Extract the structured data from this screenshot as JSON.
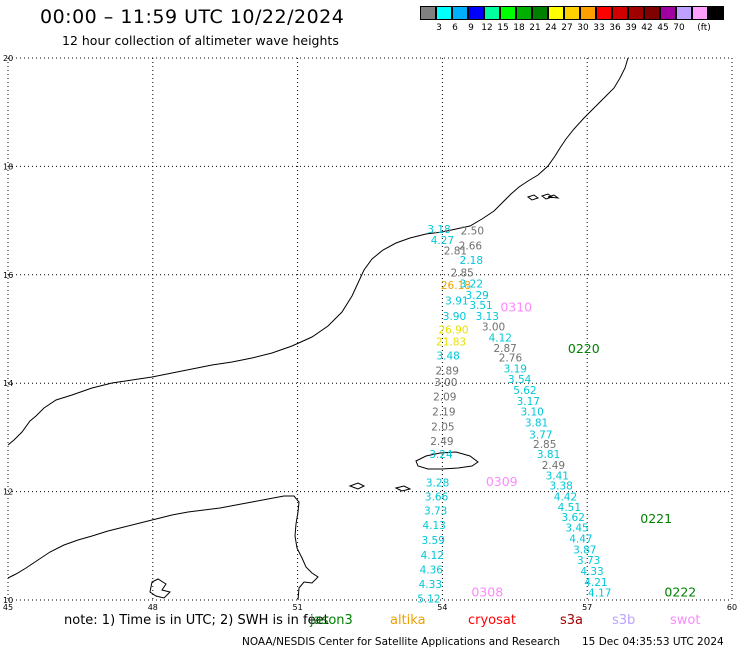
{
  "header": {
    "title": "00:00 – 11:59 UTC 10/22/2024",
    "subtitle": "12 hour collection of altimeter wave heights"
  },
  "colorbar": {
    "unit_label": "(ft)",
    "colors": [
      "#808080",
      "#00ffff",
      "#00b0ff",
      "#0000ff",
      "#00ffa0",
      "#00ff00",
      "#00b000",
      "#008000",
      "#ffff00",
      "#ffd000",
      "#ffa000",
      "#ff0000",
      "#d00000",
      "#a00000",
      "#800000",
      "#a000a0",
      "#c0a0ff",
      "#ffa0ff",
      "#000000"
    ],
    "ticks": [
      "3",
      "6",
      "9",
      "12",
      "15",
      "18",
      "21",
      "24",
      "27",
      "30",
      "33",
      "36",
      "39",
      "42",
      "45",
      "70"
    ]
  },
  "map": {
    "lon_ticks": [
      "45",
      "48",
      "51",
      "54",
      "57",
      "60"
    ],
    "lat_ticks": [
      "20",
      "18",
      "16",
      "14",
      "12",
      "10"
    ],
    "lon_range": [
      45,
      60
    ],
    "lat_range": [
      10,
      20
    ],
    "grid": "dotted"
  },
  "passes": [
    {
      "label": "0310",
      "satellite": "swot",
      "color": "#ff88ff",
      "lon": 55.2,
      "lat": 15.32
    },
    {
      "label": "0220",
      "satellite": "jason3",
      "color": "#008000",
      "lon": 56.6,
      "lat": 14.56
    },
    {
      "label": "0309",
      "satellite": "swot",
      "color": "#ff88ff",
      "lon": 54.9,
      "lat": 12.1
    },
    {
      "label": "0221",
      "satellite": "jason3",
      "color": "#008000",
      "lon": 58.1,
      "lat": 11.42
    },
    {
      "label": "0308",
      "satellite": "swot",
      "color": "#ff88ff",
      "lon": 54.6,
      "lat": 10.06
    },
    {
      "label": "0222",
      "satellite": "jason3",
      "color": "#008000",
      "lon": 58.6,
      "lat": 10.06
    }
  ],
  "observations": [
    {
      "v": "3.18",
      "lon": 53.93,
      "lat": 16.77,
      "c": "#00c8d8"
    },
    {
      "v": "2.50",
      "lon": 54.62,
      "lat": 16.74,
      "c": "#707070"
    },
    {
      "v": "4.27",
      "lon": 54.0,
      "lat": 16.57,
      "c": "#00c8d8"
    },
    {
      "v": "2.66",
      "lon": 54.58,
      "lat": 16.47,
      "c": "#707070"
    },
    {
      "v": "2.81",
      "lon": 54.27,
      "lat": 16.37,
      "c": "#707070"
    },
    {
      "v": "2.18",
      "lon": 54.6,
      "lat": 16.2,
      "c": "#00c8d8"
    },
    {
      "v": "2.85",
      "lon": 54.41,
      "lat": 15.97,
      "c": "#707070"
    },
    {
      "v": "26.18",
      "lon": 54.28,
      "lat": 15.74,
      "c": "#f0a000"
    },
    {
      "v": "3.22",
      "lon": 54.6,
      "lat": 15.77,
      "c": "#00c8d8"
    },
    {
      "v": "3.29",
      "lon": 54.72,
      "lat": 15.55,
      "c": "#00c8d8"
    },
    {
      "v": "3.91",
      "lon": 54.3,
      "lat": 15.45,
      "c": "#00c8d8"
    },
    {
      "v": "3.51",
      "lon": 54.8,
      "lat": 15.37,
      "c": "#00c8d8"
    },
    {
      "v": "3.90",
      "lon": 54.25,
      "lat": 15.17,
      "c": "#00c8d8"
    },
    {
      "v": "3.13",
      "lon": 54.93,
      "lat": 15.17,
      "c": "#00c8d8"
    },
    {
      "v": "26.90",
      "lon": 54.23,
      "lat": 14.92,
      "c": "#e8e000"
    },
    {
      "v": "3.00",
      "lon": 55.06,
      "lat": 14.97,
      "c": "#707070"
    },
    {
      "v": "4.12",
      "lon": 55.2,
      "lat": 14.77,
      "c": "#00c8d8"
    },
    {
      "v": "21.83",
      "lon": 54.18,
      "lat": 14.7,
      "c": "#e8e000"
    },
    {
      "v": "2.87",
      "lon": 55.3,
      "lat": 14.58,
      "c": "#707070"
    },
    {
      "v": "2.76",
      "lon": 55.41,
      "lat": 14.4,
      "c": "#707070"
    },
    {
      "v": "3.48",
      "lon": 54.12,
      "lat": 14.44,
      "c": "#00c8d8"
    },
    {
      "v": "3.19",
      "lon": 55.51,
      "lat": 14.2,
      "c": "#00c8d8"
    },
    {
      "v": "2.89",
      "lon": 54.1,
      "lat": 14.16,
      "c": "#707070"
    },
    {
      "v": "3.54",
      "lon": 55.6,
      "lat": 14.0,
      "c": "#00c8d8"
    },
    {
      "v": "3.00",
      "lon": 54.07,
      "lat": 13.95,
      "c": "#707070"
    },
    {
      "v": "5.62",
      "lon": 55.71,
      "lat": 13.8,
      "c": "#00c8d8"
    },
    {
      "v": "2.09",
      "lon": 54.05,
      "lat": 13.68,
      "c": "#707070"
    },
    {
      "v": "3.17",
      "lon": 55.78,
      "lat": 13.6,
      "c": "#00c8d8"
    },
    {
      "v": "2.19",
      "lon": 54.03,
      "lat": 13.4,
      "c": "#707070"
    },
    {
      "v": "3.10",
      "lon": 55.86,
      "lat": 13.4,
      "c": "#00c8d8"
    },
    {
      "v": "2.05",
      "lon": 54.01,
      "lat": 13.13,
      "c": "#707070"
    },
    {
      "v": "3.81",
      "lon": 55.95,
      "lat": 13.2,
      "c": "#00c8d8"
    },
    {
      "v": "3.77",
      "lon": 56.04,
      "lat": 12.98,
      "c": "#00c8d8"
    },
    {
      "v": "2.49",
      "lon": 53.99,
      "lat": 12.86,
      "c": "#707070"
    },
    {
      "v": "2.85",
      "lon": 56.12,
      "lat": 12.8,
      "c": "#707070"
    },
    {
      "v": "3.24",
      "lon": 53.97,
      "lat": 12.62,
      "c": "#00c8d8"
    },
    {
      "v": "3.81",
      "lon": 56.2,
      "lat": 12.62,
      "c": "#00c8d8"
    },
    {
      "v": "2.49",
      "lon": 56.3,
      "lat": 12.42,
      "c": "#707070"
    },
    {
      "v": "3.41",
      "lon": 56.38,
      "lat": 12.22,
      "c": "#00c8d8"
    },
    {
      "v": "3.28",
      "lon": 53.9,
      "lat": 12.09,
      "c": "#00c8d8"
    },
    {
      "v": "3.38",
      "lon": 56.46,
      "lat": 12.04,
      "c": "#00c8d8"
    },
    {
      "v": "3.66",
      "lon": 53.88,
      "lat": 11.84,
      "c": "#00c8d8"
    },
    {
      "v": "4.42",
      "lon": 56.55,
      "lat": 11.84,
      "c": "#00c8d8"
    },
    {
      "v": "3.73",
      "lon": 53.86,
      "lat": 11.58,
      "c": "#00c8d8"
    },
    {
      "v": "4.51",
      "lon": 56.63,
      "lat": 11.64,
      "c": "#00c8d8"
    },
    {
      "v": "3.62",
      "lon": 56.71,
      "lat": 11.46,
      "c": "#00c8d8"
    },
    {
      "v": "4.13",
      "lon": 53.83,
      "lat": 11.31,
      "c": "#00c8d8"
    },
    {
      "v": "3.45",
      "lon": 56.79,
      "lat": 11.26,
      "c": "#00c8d8"
    },
    {
      "v": "3.59",
      "lon": 53.81,
      "lat": 11.03,
      "c": "#00c8d8"
    },
    {
      "v": "4.47",
      "lon": 56.87,
      "lat": 11.06,
      "c": "#00c8d8"
    },
    {
      "v": "4.12",
      "lon": 53.79,
      "lat": 10.76,
      "c": "#00c8d8"
    },
    {
      "v": "3.87",
      "lon": 56.95,
      "lat": 10.86,
      "c": "#00c8d8"
    },
    {
      "v": "4.36",
      "lon": 53.77,
      "lat": 10.49,
      "c": "#00c8d8"
    },
    {
      "v": "3.73",
      "lon": 57.03,
      "lat": 10.66,
      "c": "#00c8d8"
    },
    {
      "v": "4.33",
      "lon": 53.75,
      "lat": 10.22,
      "c": "#00c8d8"
    },
    {
      "v": "4.33",
      "lon": 57.1,
      "lat": 10.46,
      "c": "#00c8d8"
    },
    {
      "v": "4.21",
      "lon": 57.18,
      "lat": 10.26,
      "c": "#00c8d8"
    },
    {
      "v": "5.12",
      "lon": 53.72,
      "lat": 9.95,
      "c": "#00c8d8"
    },
    {
      "v": "4.17",
      "lon": 57.26,
      "lat": 10.06,
      "c": "#00c8d8"
    }
  ],
  "footer": {
    "note": "note: 1) Time is in UTC; 2) SWH is in feet",
    "satellites": [
      {
        "name": "jason3",
        "color": "#008000"
      },
      {
        "name": "altika",
        "color": "#f0a000"
      },
      {
        "name": "cryosat",
        "color": "#ff0000"
      },
      {
        "name": "s3a",
        "color": "#a00000"
      },
      {
        "name": "s3b",
        "color": "#c0a0ff"
      },
      {
        "name": "swot",
        "color": "#ff88ff"
      }
    ],
    "credit": "NOAA/NESDIS Center for Satellite Applications and Research",
    "timestamp": "15 Dec 04:35:53 UTC 2024"
  }
}
